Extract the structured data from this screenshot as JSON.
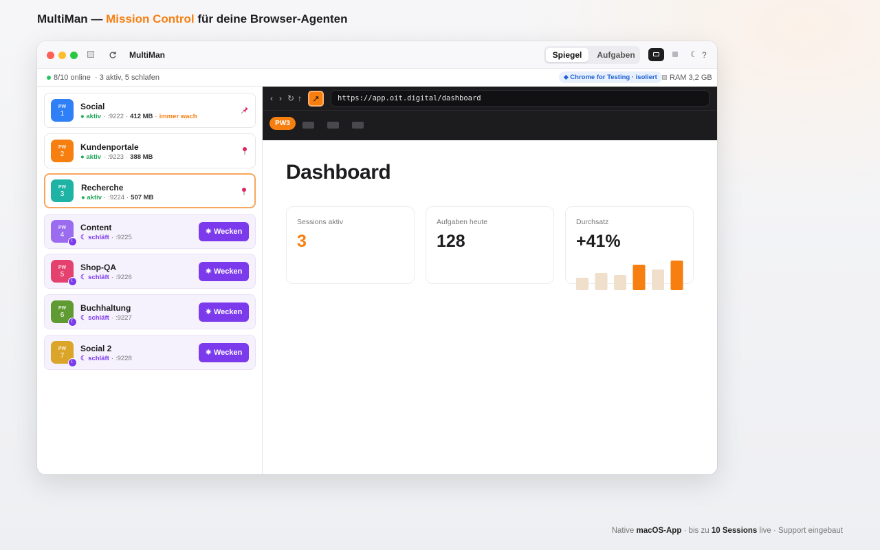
{
  "header": {
    "brand": "MultiMan —",
    "highlight": "Mission Control",
    "rest": "für deine Browser-Agenten"
  },
  "titlebar": {
    "app_name": "MultiMan",
    "tabs": [
      "Spiegel",
      "Aufgaben"
    ],
    "active_tab": 0,
    "theme_icon": "☾",
    "help_icon": "?"
  },
  "statusbar": {
    "online": "8/10 online",
    "summary": "· 3 aktiv, 5 schlafen",
    "engine": "⬥ Chrome for Testing · isoliert",
    "ram": "RAM 3,2 GB"
  },
  "separator": "·",
  "wake_button": "✷ Wecken",
  "sleep_badge": "☾",
  "selected_session": 2,
  "sessions": [
    {
      "prefix": "PW",
      "number": 1,
      "name": "Social",
      "status": "● aktiv",
      "state": "active",
      "port": ":9222",
      "memory": "412 MB",
      "note": "immer wach",
      "color": "#2f7ff6",
      "pin": "tack"
    },
    {
      "prefix": "PW",
      "number": 2,
      "name": "Kundenportale",
      "status": "● aktiv",
      "state": "active",
      "port": ":9223",
      "memory": "388 MB",
      "color": "#f77f10",
      "pin": "map"
    },
    {
      "prefix": "PW",
      "number": 3,
      "name": "Recherche",
      "status": "● aktiv",
      "state": "active",
      "port": ":9224",
      "memory": "507 MB",
      "color": "#1fb3a5",
      "pin": "map"
    },
    {
      "prefix": "PW",
      "number": 4,
      "name": "Content",
      "status": "☾ schläft",
      "state": "sleeping",
      "port": ":9225",
      "color": "#9b6cf0"
    },
    {
      "prefix": "PW",
      "number": 5,
      "name": "Shop-QA",
      "status": "☾ schläft",
      "state": "sleeping",
      "port": ":9226",
      "color": "#e5416e"
    },
    {
      "prefix": "PW",
      "number": 6,
      "name": "Buchhaltung",
      "status": "☾ schläft",
      "state": "sleeping",
      "port": ":9227",
      "color": "#5f9a32"
    },
    {
      "prefix": "PW",
      "number": 7,
      "name": "Social 2",
      "status": "☾ schläft",
      "state": "sleeping",
      "port": ":9228",
      "color": "#dba52a"
    }
  ],
  "browser": {
    "nav": [
      "‹",
      "›",
      "↻",
      "↑"
    ],
    "open_icon": "↗",
    "url": "https://app.oit.digital/dashboard",
    "active_tab": "PW3",
    "inactive_tabs": 3
  },
  "dashboard": {
    "title": "Dashboard",
    "cards": [
      {
        "label": "Sessions aktiv",
        "value": 3,
        "accent": true
      },
      {
        "label": "Aufgaben heute",
        "value": 128,
        "accent": false
      },
      {
        "label": "Durchsatz",
        "value": "+41%",
        "accent": false
      }
    ],
    "bars": [
      {
        "value": 18,
        "highlight": false
      },
      {
        "value": 25,
        "highlight": false
      },
      {
        "value": 22,
        "highlight": false
      },
      {
        "value": 37,
        "highlight": true
      },
      {
        "value": 30,
        "highlight": false
      },
      {
        "value": 43,
        "highlight": true
      }
    ]
  },
  "footer": [
    {
      "text": "Native",
      "bold": false
    },
    {
      "text": "macOS-App",
      "bold": true
    },
    {
      "text": "· bis zu",
      "bold": false
    },
    {
      "text": "10 Sessions",
      "bold": true
    },
    {
      "text": "live · Support eingebaut",
      "bold": false
    }
  ]
}
